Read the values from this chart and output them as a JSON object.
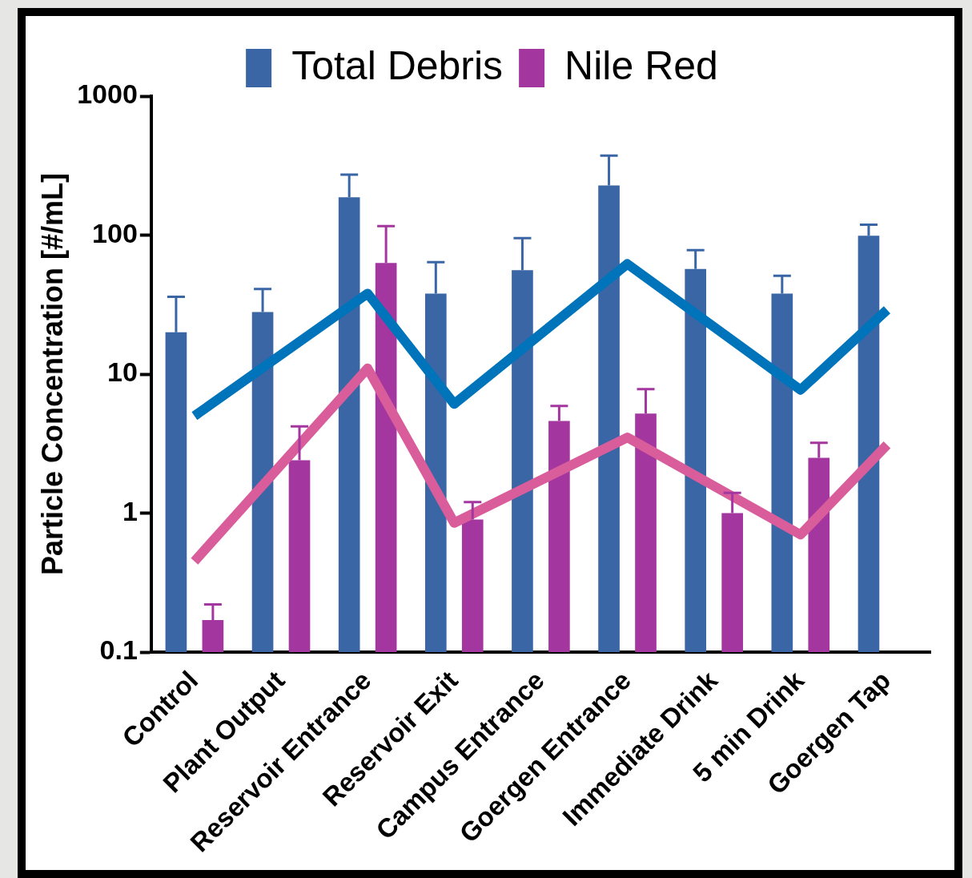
{
  "chart_data": {
    "type": "bar",
    "ylabel": "Particle Concentration [#/mL]",
    "categories": [
      "Control",
      "Plant Output",
      "Reservoir Entrance",
      "Reservoir Exit",
      "Campus Entrance",
      "Goergen Entrance",
      "Immediate Drink",
      "5 min Drink",
      "Goergen Tap"
    ],
    "series": [
      {
        "name": "Total Debris",
        "color": "#3a66a6",
        "values": [
          20,
          28,
          187,
          38,
          56,
          228,
          57,
          38,
          99
        ],
        "errors": [
          [
            20,
            36
          ],
          [
            28,
            41
          ],
          [
            187,
            272
          ],
          [
            38,
            64
          ],
          [
            56,
            95
          ],
          [
            228,
            373
          ],
          [
            57,
            78
          ],
          [
            38,
            51
          ],
          [
            99,
            119
          ]
        ]
      },
      {
        "name": "Nile Red",
        "color": "#a3379f",
        "values": [
          0.17,
          2.4,
          63,
          0.9,
          4.6,
          5.2,
          1.0,
          2.5,
          null
        ],
        "errors": [
          [
            0.17,
            0.22
          ],
          [
            2.4,
            4.2
          ],
          [
            63,
            116
          ],
          [
            0.9,
            1.2
          ],
          [
            4.6,
            5.9
          ],
          [
            5.2,
            7.8
          ],
          [
            1.0,
            1.4
          ],
          [
            2.5,
            3.2
          ],
          null
        ]
      },
      {
        "type": "line",
        "color": "#0074bb",
        "values": [
          5.0,
          null,
          38,
          6.1,
          null,
          62,
          null,
          7.7,
          29
        ]
      },
      {
        "type": "line",
        "color": "#d95c9b",
        "values": [
          0.45,
          null,
          11,
          0.85,
          null,
          3.5,
          null,
          0.7,
          3.1
        ]
      }
    ],
    "log": true,
    "ylim": [
      0.1,
      1000
    ],
    "yticks": [
      0.1,
      1,
      10,
      100,
      1000
    ],
    "grid": false,
    "legend": "top",
    "marker": "none",
    "line_style": "solid"
  }
}
